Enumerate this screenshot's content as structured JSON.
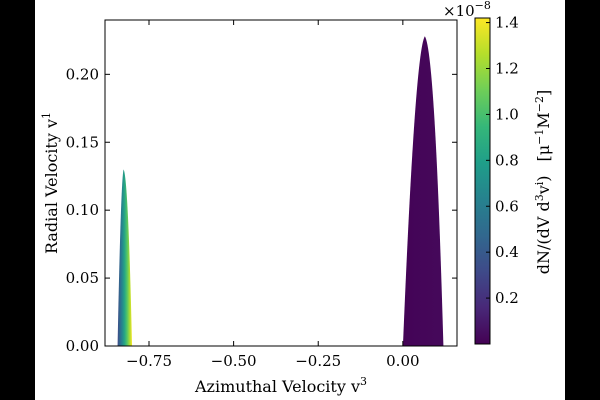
{
  "chart_data": {
    "type": "heatmap",
    "xlabel": "Azimuthal Velocity  v",
    "xlabel_superscript": "3",
    "ylabel": "Radial Velocity  v",
    "ylabel_superscript": "1",
    "xlim": [
      -0.88,
      0.16
    ],
    "ylim": [
      0.0,
      0.24
    ],
    "x_ticks": [
      -0.75,
      -0.5,
      -0.25,
      0.0
    ],
    "x_tick_labels": [
      "−0.75",
      "−0.50",
      "−0.25",
      "0.00"
    ],
    "y_ticks": [
      0.0,
      0.05,
      0.1,
      0.15,
      0.2
    ],
    "y_tick_labels": [
      "0.00",
      "0.05",
      "0.10",
      "0.15",
      "0.20"
    ],
    "grid": false,
    "colormap": "viridis",
    "colorbar": {
      "label_main": "dN/(dV d",
      "label_sup1": "3",
      "label_mid": "v",
      "label_sup2": "i",
      "label_end": ")",
      "units_open": "[μ",
      "units_sup1": "−1",
      "units_mid": "M",
      "units_sup2": "−2",
      "units_close": "]",
      "range": [
        0.0,
        1.42
      ],
      "ticks": [
        0.2,
        0.4,
        0.6,
        0.8,
        1.0,
        1.2,
        1.4
      ],
      "tick_labels": [
        "0.2",
        "0.4",
        "0.6",
        "0.8",
        "1.0",
        "1.2",
        "1.4"
      ],
      "multiplier_base": "×10",
      "multiplier_exp": "−8"
    },
    "regions": [
      {
        "name": "left lobe",
        "x_peak": -0.825,
        "x_range_at_base": [
          -0.843,
          -0.8
        ],
        "peak_y": 0.13,
        "value_range": [
          0.3,
          1.42
        ]
      },
      {
        "name": "right lobe",
        "x_peak": 0.065,
        "x_range_at_base": [
          0.0,
          0.12
        ],
        "peak_y": 0.228,
        "value_range": [
          0.01,
          0.03
        ]
      }
    ]
  }
}
